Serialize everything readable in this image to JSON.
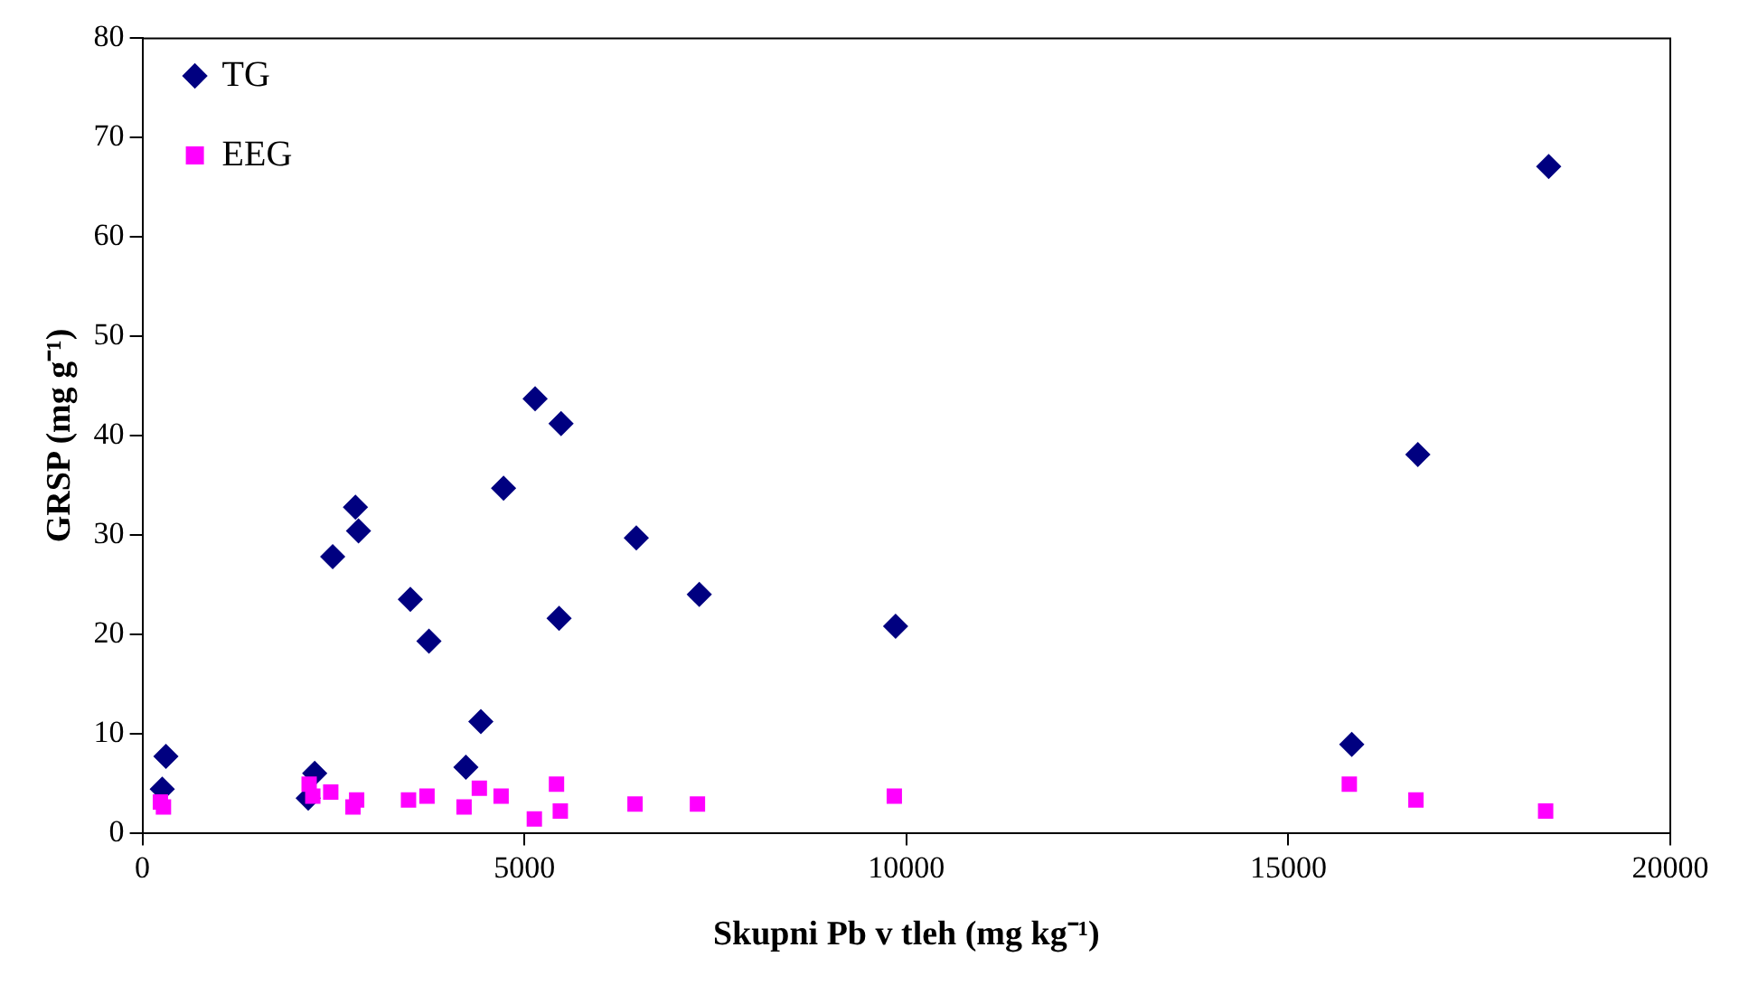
{
  "chart_data": {
    "type": "scatter",
    "xlabel": "Skupni Pb v tleh (mg kg⁻¹)",
    "ylabel": "GRSP (mg g⁻¹)",
    "xlim": [
      0,
      20000
    ],
    "xticks": [
      0,
      5000,
      10000,
      15000,
      20000
    ],
    "ylim": [
      0,
      80
    ],
    "yticks": [
      0,
      10,
      20,
      30,
      40,
      50,
      60,
      70,
      80
    ],
    "grid": false,
    "legend": "top left",
    "series": [
      {
        "name": "TG",
        "color": "#000080",
        "marker": "diamond",
        "x": [
          307,
          259,
          2255,
          2170,
          2490,
          2788,
          2828,
          3507,
          3750,
          4430,
          4234,
          4727,
          5140,
          5480,
          5454,
          6465,
          7289,
          9859,
          15830,
          16695,
          18408
        ],
        "values": [
          7.7,
          4.4,
          6.0,
          3.5,
          27.8,
          32.8,
          30.4,
          23.5,
          19.3,
          11.2,
          6.6,
          34.7,
          43.7,
          41.2,
          21.6,
          29.7,
          24.0,
          20.8,
          8.9,
          38.1,
          67.1
        ]
      },
      {
        "name": "EEG",
        "color": "#ff00ff",
        "marker": "square",
        "x": [
          235,
          275,
          2182,
          2230,
          2465,
          2756,
          2804,
          3483,
          3725,
          4210,
          4410,
          4695,
          5130,
          5420,
          5470,
          6448,
          7265,
          9842,
          15798,
          16670,
          18368
        ],
        "values": [
          3.1,
          2.6,
          4.9,
          3.7,
          4.1,
          2.6,
          3.3,
          3.3,
          3.7,
          2.6,
          4.5,
          3.7,
          1.4,
          4.9,
          2.2,
          2.9,
          2.9,
          3.7,
          4.9,
          3.3,
          2.2
        ]
      }
    ]
  }
}
